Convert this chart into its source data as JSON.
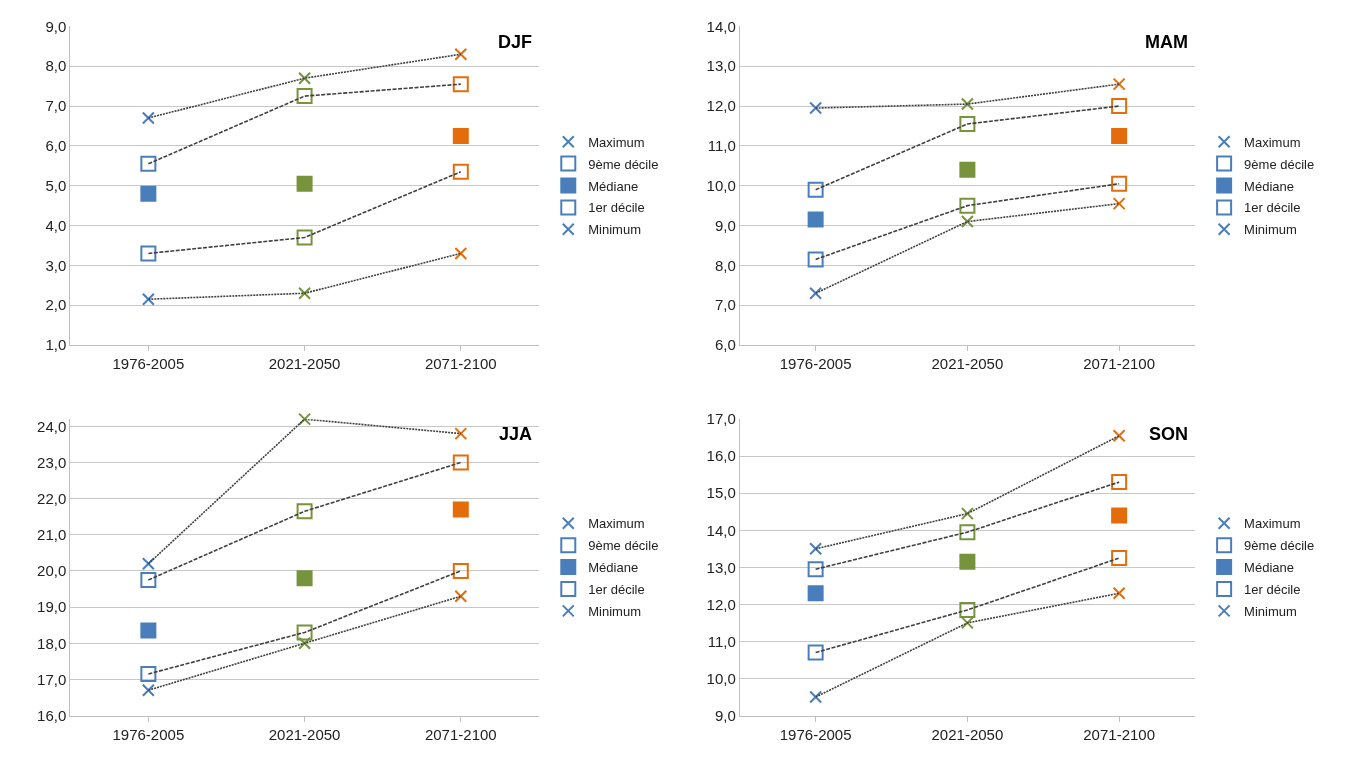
{
  "chart_data": [
    {
      "type": "line",
      "title": "DJF",
      "categories": [
        "1976-2005",
        "2021-2050",
        "2071-2100"
      ],
      "ylim": [
        1,
        9
      ],
      "yticks": [
        {
          "value": 1,
          "label": "1,0"
        },
        {
          "value": 2,
          "label": "2,0"
        },
        {
          "value": 3,
          "label": "3,0"
        },
        {
          "value": 4,
          "label": "4,0"
        },
        {
          "value": 5,
          "label": "5,0"
        },
        {
          "value": 6,
          "label": "6,0"
        },
        {
          "value": 7,
          "label": "7,0"
        },
        {
          "value": 8,
          "label": "8,0"
        },
        {
          "value": 9,
          "label": "9,0"
        }
      ],
      "grid": "y",
      "legend": "right",
      "series": [
        {
          "name": "Maximum",
          "marker": "cross",
          "line_style": "dotted",
          "color": "#404040",
          "colors": [
            "#4a7ebb",
            "#77933c",
            "#e46c0a"
          ],
          "values": [
            6.7,
            7.7,
            8.3
          ]
        },
        {
          "name": "9ème décile",
          "marker": "square",
          "line_style": "dashed",
          "color": "#404040",
          "colors": [
            "#4a7ebb",
            "#77933c",
            "#e46c0a"
          ],
          "values": [
            5.55,
            7.25,
            7.55
          ]
        },
        {
          "name": "Médiane",
          "type": "scatter",
          "marker": "square",
          "colors": [
            "#4a7ebb",
            "#77933c",
            "#e46c0a"
          ],
          "values": [
            4.8,
            5.05,
            6.25
          ]
        },
        {
          "name": "1er décile",
          "marker": "square",
          "line_style": "dashed",
          "color": "#404040",
          "colors": [
            "#4a7ebb",
            "#77933c",
            "#e46c0a"
          ],
          "values": [
            3.3,
            3.7,
            5.35
          ]
        },
        {
          "name": "Minimum",
          "marker": "cross",
          "line_style": "dotted",
          "color": "#404040",
          "colors": [
            "#4a7ebb",
            "#77933c",
            "#e46c0a"
          ],
          "values": [
            2.15,
            2.3,
            3.3
          ]
        }
      ]
    },
    {
      "type": "line",
      "title": "MAM",
      "categories": [
        "1976-2005",
        "2021-2050",
        "2071-2100"
      ],
      "ylim": [
        6,
        14
      ],
      "yticks": [
        {
          "value": 6,
          "label": "6,0"
        },
        {
          "value": 7,
          "label": "7,0"
        },
        {
          "value": 8,
          "label": "8,0"
        },
        {
          "value": 9,
          "label": "9,0"
        },
        {
          "value": 10,
          "label": "10,0"
        },
        {
          "value": 11,
          "label": "11,0"
        },
        {
          "value": 12,
          "label": "12,0"
        },
        {
          "value": 13,
          "label": "13,0"
        },
        {
          "value": 14,
          "label": "14,0"
        }
      ],
      "grid": "y",
      "legend": "right",
      "series": [
        {
          "name": "Maximum",
          "marker": "cross",
          "line_style": "dotted",
          "color": "#404040",
          "colors": [
            "#4a7ebb",
            "#77933c",
            "#e46c0a"
          ],
          "values": [
            11.95,
            12.05,
            12.55
          ]
        },
        {
          "name": "9ème décile",
          "marker": "square",
          "line_style": "dashed",
          "color": "#404040",
          "colors": [
            "#4a7ebb",
            "#77933c",
            "#e46c0a"
          ],
          "values": [
            9.9,
            11.55,
            12.0
          ]
        },
        {
          "name": "Médiane",
          "type": "scatter",
          "marker": "square",
          "colors": [
            "#4a7ebb",
            "#77933c",
            "#e46c0a"
          ],
          "values": [
            9.15,
            10.4,
            11.25
          ]
        },
        {
          "name": "1er décile",
          "marker": "square",
          "line_style": "dashed",
          "color": "#404040",
          "colors": [
            "#4a7ebb",
            "#77933c",
            "#e46c0a"
          ],
          "values": [
            8.15,
            9.5,
            10.05
          ]
        },
        {
          "name": "Minimum",
          "marker": "cross",
          "line_style": "dotted",
          "color": "#404040",
          "colors": [
            "#4a7ebb",
            "#77933c",
            "#e46c0a"
          ],
          "values": [
            7.3,
            9.1,
            9.55
          ]
        }
      ]
    },
    {
      "type": "line",
      "title": "JJA",
      "categories": [
        "1976-2005",
        "2021-2050",
        "2071-2100"
      ],
      "ylim": [
        16,
        24.2
      ],
      "yticks": [
        {
          "value": 16,
          "label": "16,0"
        },
        {
          "value": 17,
          "label": "17,0"
        },
        {
          "value": 18,
          "label": "18,0"
        },
        {
          "value": 19,
          "label": "19,0"
        },
        {
          "value": 20,
          "label": "20,0"
        },
        {
          "value": 21,
          "label": "21,0"
        },
        {
          "value": 22,
          "label": "22,0"
        },
        {
          "value": 23,
          "label": "23,0"
        },
        {
          "value": 24,
          "label": "24,0"
        }
      ],
      "grid": "y",
      "legend": "right",
      "series": [
        {
          "name": "Maximum",
          "marker": "cross",
          "line_style": "dotted",
          "color": "#404040",
          "colors": [
            "#4a7ebb",
            "#77933c",
            "#e46c0a"
          ],
          "values": [
            20.2,
            24.2,
            23.8
          ]
        },
        {
          "name": "9ème décile",
          "marker": "square",
          "line_style": "dashed",
          "color": "#404040",
          "colors": [
            "#4a7ebb",
            "#77933c",
            "#e46c0a"
          ],
          "values": [
            19.75,
            21.65,
            23.0
          ]
        },
        {
          "name": "Médiane",
          "type": "scatter",
          "marker": "square",
          "colors": [
            "#4a7ebb",
            "#77933c",
            "#e46c0a"
          ],
          "values": [
            18.35,
            19.8,
            21.7
          ]
        },
        {
          "name": "1er décile",
          "marker": "square",
          "line_style": "dashed",
          "color": "#404040",
          "colors": [
            "#4a7ebb",
            "#77933c",
            "#e46c0a"
          ],
          "values": [
            17.15,
            18.3,
            20.0
          ]
        },
        {
          "name": "Minimum",
          "marker": "cross",
          "line_style": "dotted",
          "color": "#404040",
          "colors": [
            "#4a7ebb",
            "#77933c",
            "#e46c0a"
          ],
          "values": [
            16.7,
            18.0,
            19.3
          ]
        }
      ]
    },
    {
      "type": "line",
      "title": "SON",
      "categories": [
        "1976-2005",
        "2021-2050",
        "2071-2100"
      ],
      "ylim": [
        9,
        17
      ],
      "yticks": [
        {
          "value": 9,
          "label": "9,0"
        },
        {
          "value": 10,
          "label": "10,0"
        },
        {
          "value": 11,
          "label": "11,0"
        },
        {
          "value": 12,
          "label": "12,0"
        },
        {
          "value": 13,
          "label": "13,0"
        },
        {
          "value": 14,
          "label": "14,0"
        },
        {
          "value": 15,
          "label": "15,0"
        },
        {
          "value": 16,
          "label": "16,0"
        },
        {
          "value": 17,
          "label": "17,0"
        }
      ],
      "grid": "y",
      "legend": "right",
      "series": [
        {
          "name": "Maximum",
          "marker": "cross",
          "line_style": "dotted",
          "color": "#404040",
          "colors": [
            "#4a7ebb",
            "#77933c",
            "#e46c0a"
          ],
          "values": [
            13.5,
            14.45,
            16.55
          ]
        },
        {
          "name": "9ème décile",
          "marker": "square",
          "line_style": "dashed",
          "color": "#404040",
          "colors": [
            "#4a7ebb",
            "#77933c",
            "#e46c0a"
          ],
          "values": [
            12.95,
            13.95,
            15.3
          ]
        },
        {
          "name": "Médiane",
          "type": "scatter",
          "marker": "square",
          "colors": [
            "#4a7ebb",
            "#77933c",
            "#e46c0a"
          ],
          "values": [
            12.3,
            13.15,
            14.4
          ]
        },
        {
          "name": "1er décile",
          "marker": "square",
          "line_style": "dashed",
          "color": "#404040",
          "colors": [
            "#4a7ebb",
            "#77933c",
            "#e46c0a"
          ],
          "values": [
            10.7,
            11.85,
            13.25
          ]
        },
        {
          "name": "Minimum",
          "marker": "cross",
          "line_style": "dotted",
          "color": "#404040",
          "colors": [
            "#4a7ebb",
            "#77933c",
            "#e46c0a"
          ],
          "values": [
            9.5,
            11.5,
            12.3
          ]
        }
      ]
    }
  ]
}
